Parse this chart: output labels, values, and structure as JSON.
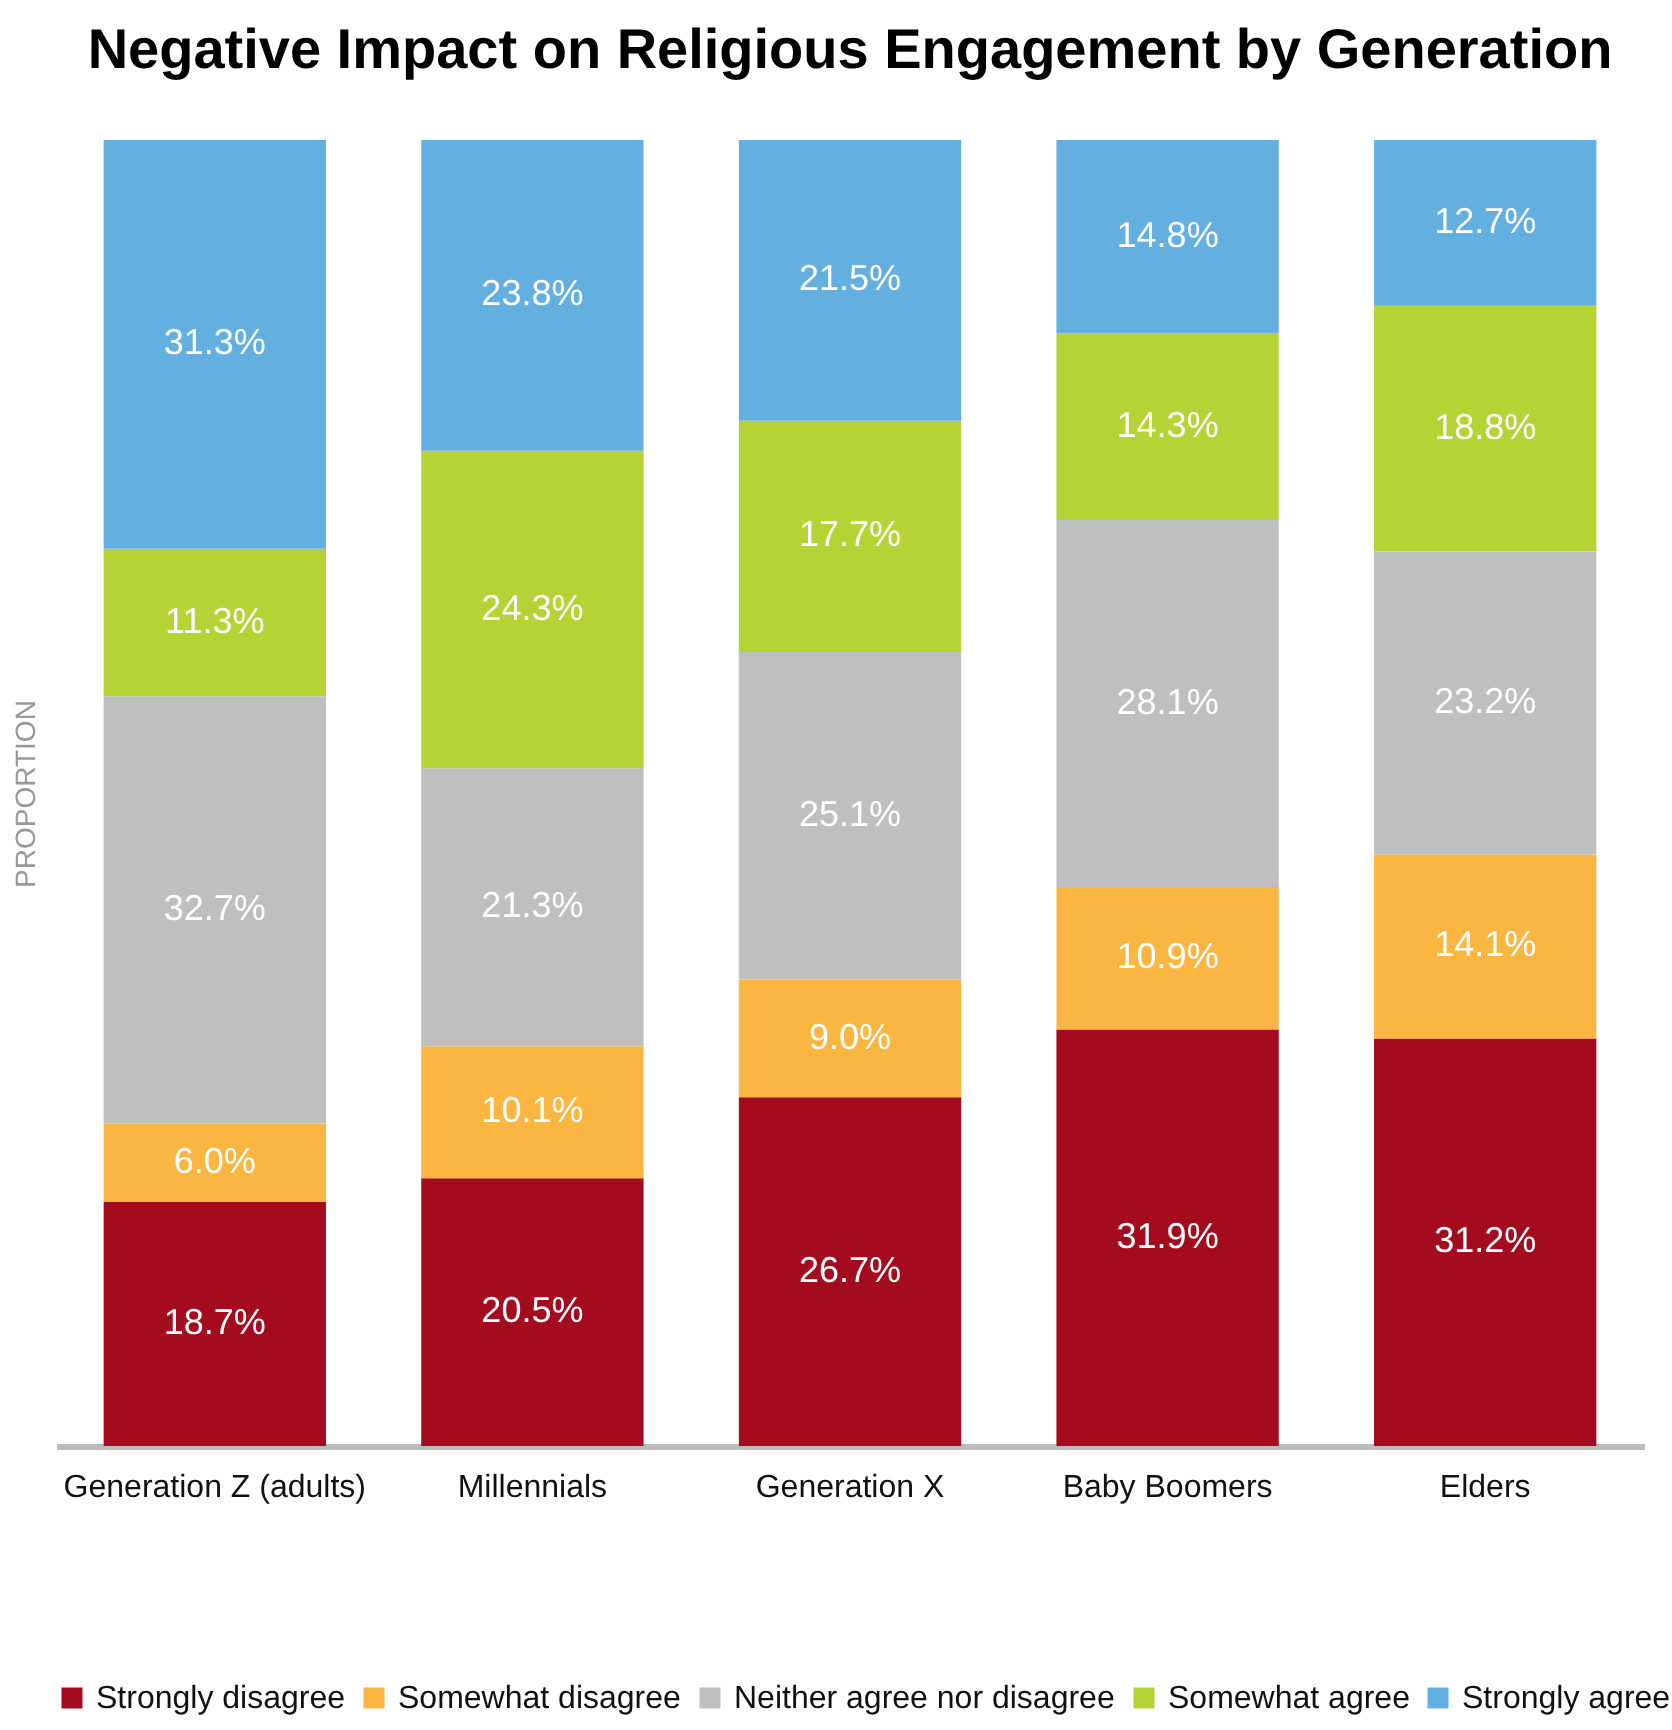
{
  "chart_data": {
    "type": "bar",
    "stacked": true,
    "title": "Negative Impact on Religious Engagement\nby Generation",
    "ylabel": "PROPORTION",
    "tick_labels": "x",
    "legend": "bottom",
    "grid": false,
    "categories": [
      "Generation Z (adults)",
      "Millennials",
      "Generation X",
      "Baby Boomers",
      "Elders"
    ],
    "series": [
      {
        "name": "Strongly disagree",
        "color": "#a50b1e",
        "values": [
          18.7,
          20.5,
          26.7,
          31.9,
          31.2
        ],
        "value_labels": [
          "18.7%",
          "20.5%",
          "26.7%",
          "31.9%",
          "31.2%"
        ]
      },
      {
        "name": "Somewhat disagree",
        "color": "#fbb641",
        "values": [
          6.0,
          10.1,
          9.0,
          10.9,
          14.1
        ],
        "value_labels": [
          "6.0%",
          "10.1%",
          "9.0%",
          "10.9%",
          "14.1%"
        ]
      },
      {
        "name": "Neither agree nor disagree",
        "color": "#bfbfbf",
        "values": [
          32.7,
          21.3,
          25.1,
          28.1,
          23.2
        ],
        "value_labels": [
          "32.7%",
          "21.3%",
          "25.1%",
          "28.1%",
          "23.2%"
        ]
      },
      {
        "name": "Somewhat agree",
        "color": "#b5d334",
        "values": [
          11.3,
          24.3,
          17.7,
          14.3,
          18.8
        ],
        "value_labels": [
          "11.3%",
          "24.3%",
          "17.7%",
          "14.3%",
          "18.8%"
        ]
      },
      {
        "name": "Strongly agree",
        "color": "#63afe0",
        "values": [
          31.3,
          23.8,
          21.5,
          14.8,
          12.7
        ],
        "value_labels": [
          "31.3%",
          "23.8%",
          "21.5%",
          "14.8%",
          "12.7%"
        ]
      }
    ]
  }
}
